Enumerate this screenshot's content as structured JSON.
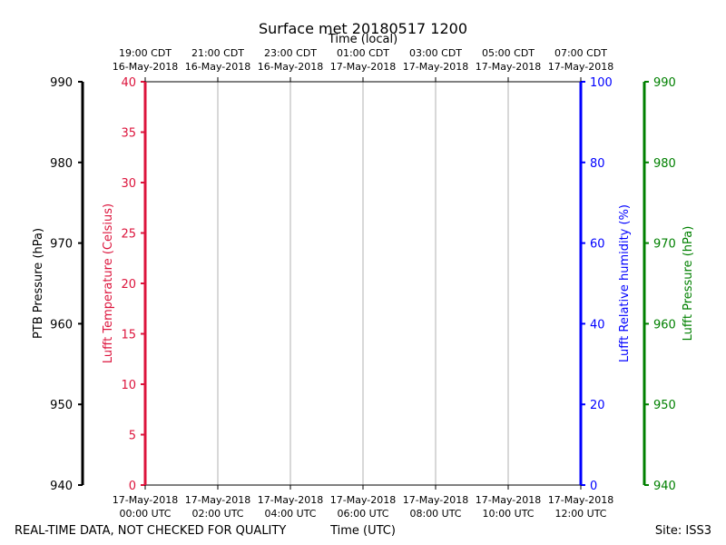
{
  "chart_data": {
    "type": "line",
    "title": "Surface met 20180517 1200",
    "top_axis_label": "Time (local)",
    "xlabel": "Time (UTC)",
    "footer_left": "REAL-TIME DATA, NOT CHECKED FOR QUALITY",
    "footer_right": "Site: ISS3",
    "x_ticks": [
      {
        "utc_time": "00:00 UTC",
        "utc_date": "17-May-2018",
        "local_time": "19:00 CDT",
        "local_date": "16-May-2018"
      },
      {
        "utc_time": "02:00 UTC",
        "utc_date": "17-May-2018",
        "local_time": "21:00 CDT",
        "local_date": "16-May-2018"
      },
      {
        "utc_time": "04:00 UTC",
        "utc_date": "17-May-2018",
        "local_time": "23:00 CDT",
        "local_date": "16-May-2018"
      },
      {
        "utc_time": "06:00 UTC",
        "utc_date": "17-May-2018",
        "local_time": "01:00 CDT",
        "local_date": "17-May-2018"
      },
      {
        "utc_time": "08:00 UTC",
        "utc_date": "17-May-2018",
        "local_time": "03:00 CDT",
        "local_date": "17-May-2018"
      },
      {
        "utc_time": "10:00 UTC",
        "utc_date": "17-May-2018",
        "local_time": "05:00 CDT",
        "local_date": "17-May-2018"
      },
      {
        "utc_time": "12:00 UTC",
        "utc_date": "17-May-2018",
        "local_time": "07:00 CDT",
        "local_date": "17-May-2018"
      }
    ],
    "x_range_hours": [
      0,
      12
    ],
    "axes": [
      {
        "id": "ptb",
        "label": "PTB Pressure (hPa)",
        "color": "#000000",
        "range": [
          940,
          990
        ],
        "ticks": [
          940,
          950,
          960,
          970,
          980,
          990
        ]
      },
      {
        "id": "temp",
        "label": "Lufft Temperature (Celsius)",
        "color": "#dc143c",
        "range": [
          0,
          40
        ],
        "ticks": [
          0,
          5,
          10,
          15,
          20,
          25,
          30,
          35,
          40
        ]
      },
      {
        "id": "rh",
        "label": "Lufft Relative humidity (%)",
        "color": "#0000ff",
        "range": [
          0,
          100
        ],
        "ticks": [
          0,
          20,
          40,
          60,
          80,
          100
        ]
      },
      {
        "id": "pres",
        "label": "Lufft Pressure (hPa)",
        "color": "#008000",
        "range": [
          940,
          990
        ],
        "ticks": [
          940,
          950,
          960,
          970,
          980,
          990
        ]
      }
    ],
    "series": [],
    "grid": true
  }
}
